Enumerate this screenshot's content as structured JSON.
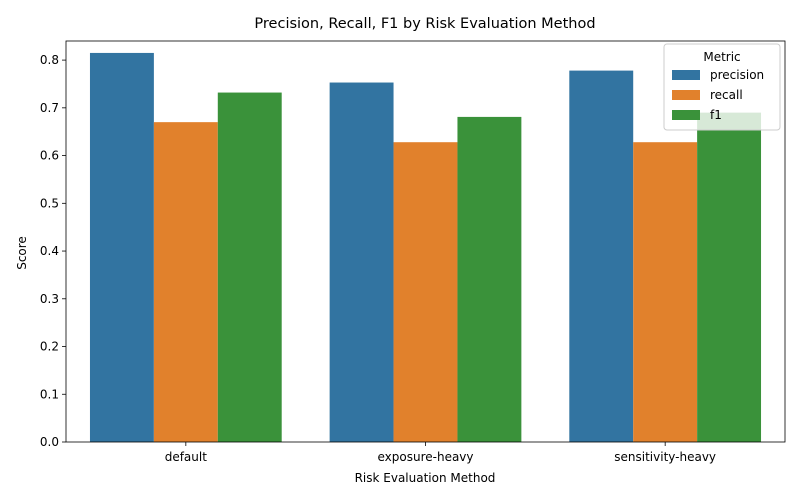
{
  "chart_data": {
    "type": "bar",
    "title": "Precision, Recall, F1 by Risk Evaluation Method",
    "xlabel": "Risk Evaluation Method",
    "ylabel": "Score",
    "categories": [
      "default",
      "exposure-heavy",
      "sensitivity-heavy"
    ],
    "ylim": [
      0,
      0.84
    ],
    "yticks": [
      "0.0",
      "0.1",
      "0.2",
      "0.3",
      "0.4",
      "0.5",
      "0.6",
      "0.7",
      "0.8"
    ],
    "grid": false,
    "legend": {
      "title": "Metric",
      "placement": "top-right"
    },
    "series": [
      {
        "name": "precision",
        "color": "#3274a1",
        "values": [
          0.815,
          0.753,
          0.778
        ]
      },
      {
        "name": "recall",
        "color": "#e1812c",
        "values": [
          0.67,
          0.628,
          0.628
        ]
      },
      {
        "name": "f1",
        "color": "#3a923a",
        "values": [
          0.732,
          0.681,
          0.69
        ]
      }
    ]
  }
}
